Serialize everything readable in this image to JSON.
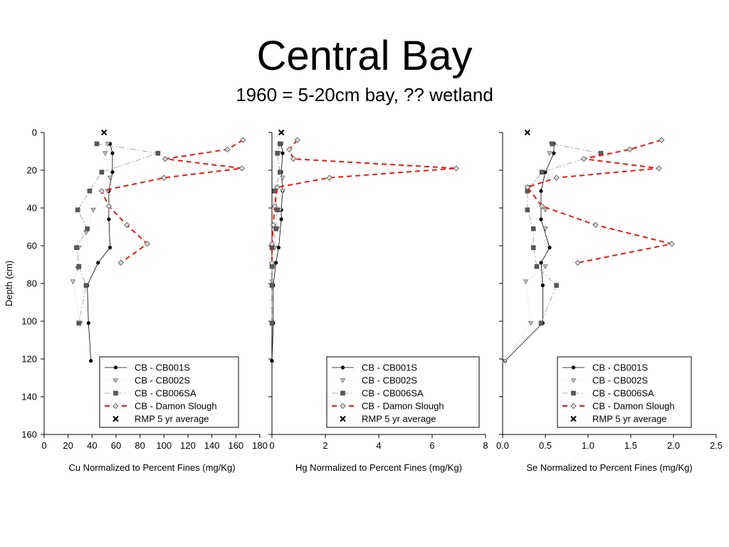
{
  "title": "Central Bay",
  "subtitle": "1960 = 5-20cm bay, ?? wetland",
  "colors": {
    "cb001s": "#000000",
    "cb002s": "#888888",
    "cb006sa": "#555555",
    "damon": "#e31a1c",
    "rmp": "#000000"
  },
  "legend": [
    "CB - CB001S",
    "CB - CB002S",
    "CB - CB006SA",
    "CB - Damon Slough",
    "RMP 5 yr average"
  ],
  "chart_data": [
    {
      "type": "scatter",
      "xlabel": "Cu Normalized to Percent Fines (mg/Kg)",
      "ylabel": "Depth (cm)",
      "xlim": [
        0,
        180
      ],
      "ylim": [
        160,
        0
      ],
      "xticks": [
        "0",
        "20",
        "40",
        "60",
        "80",
        "100",
        "120",
        "140",
        "160",
        "180"
      ],
      "yticks": [
        "0",
        "20",
        "40",
        "60",
        "80",
        "100",
        "120",
        "140",
        "160"
      ],
      "series": [
        {
          "name": "CB - CB001S",
          "x": [
            55,
            57,
            57,
            54,
            54,
            55,
            45,
            36,
            37,
            39
          ],
          "y": [
            6,
            11,
            21,
            31,
            46,
            61,
            69,
            81,
            101,
            121
          ]
        },
        {
          "name": "CB - CB002S",
          "x": [
            53,
            51,
            55,
            53,
            41,
            35,
            29,
            28,
            24,
            30
          ],
          "y": [
            6,
            11,
            24,
            31,
            41,
            53,
            61,
            72,
            79,
            101
          ]
        },
        {
          "name": "CB - CB006SA",
          "x": [
            44,
            95,
            48,
            38,
            28,
            36,
            27,
            29,
            35,
            29
          ],
          "y": [
            6,
            11,
            21,
            31,
            41,
            51,
            61,
            71,
            81,
            101
          ]
        },
        {
          "name": "CB - Damon Slough",
          "x": [
            166,
            153,
            101,
            165,
            100,
            48,
            54,
            69,
            86,
            64
          ],
          "y": [
            4,
            9,
            14,
            19,
            24,
            31,
            39,
            49,
            59,
            69
          ]
        },
        {
          "name": "RMP 5 yr average",
          "x": [
            50
          ],
          "y": [
            0
          ]
        }
      ]
    },
    {
      "type": "scatter",
      "xlabel": "Hg Normalized to Percent Fines (mg/Kg)",
      "ylabel": "",
      "xlim": [
        0,
        8
      ],
      "ylim": [
        160,
        0
      ],
      "xticks": [
        "0",
        "2",
        "4",
        "6",
        "8"
      ],
      "yticks": [],
      "series": [
        {
          "name": "CB - CB001S",
          "x": [
            0.35,
            0.4,
            0.35,
            0.4,
            0.35,
            0.35,
            0.25,
            0.15,
            0.05,
            0.05,
            0.0
          ],
          "y": [
            6,
            11,
            21,
            31,
            41,
            46,
            61,
            69,
            81,
            101,
            121
          ]
        },
        {
          "name": "CB - CB002S",
          "x": [
            0.35,
            0.25,
            0.4,
            0.4,
            0.3,
            0.2,
            0.1,
            0.05,
            0.0,
            0.0,
            0.0
          ],
          "y": [
            6,
            11,
            24,
            31,
            41,
            51,
            61,
            71,
            79,
            101,
            101
          ]
        },
        {
          "name": "CB - CB006SA",
          "x": [
            0.3,
            0.2,
            0.3,
            0.1,
            0.2,
            0.15,
            0.0,
            0.0,
            0.0,
            0.0
          ],
          "y": [
            6,
            11,
            21,
            31,
            41,
            51,
            61,
            71,
            81,
            101
          ]
        },
        {
          "name": "CB - Damon Slough",
          "x": [
            0.95,
            0.65,
            0.8,
            6.9,
            2.15,
            0.2,
            0.1,
            0.05,
            0.0,
            0.0
          ],
          "y": [
            4,
            9,
            14,
            19,
            24,
            29,
            39,
            49,
            59,
            69
          ]
        },
        {
          "name": "RMP 5 yr average",
          "x": [
            0.35
          ],
          "y": [
            0
          ]
        }
      ]
    },
    {
      "type": "scatter",
      "xlabel": "Se Normalized to Percent Fines (mg/Kg)",
      "ylabel": "",
      "xlim": [
        0,
        2.5
      ],
      "ylim": [
        160,
        0
      ],
      "xticks": [
        "0.0",
        "0.5",
        "1.0",
        "1.5",
        "2.0",
        "2.5"
      ],
      "yticks": [],
      "series": [
        {
          "name": "CB - CB001S",
          "x": [
            0.6,
            0.6,
            0.5,
            0.45,
            0.45,
            0.55,
            0.45,
            0.47,
            0.47,
            0.03
          ],
          "y": [
            6,
            11,
            21,
            31,
            46,
            61,
            69,
            81,
            101,
            121
          ]
        },
        {
          "name": "CB - CB002S",
          "x": [
            0.57,
            0.55,
            0.47,
            0.3,
            0.5,
            0.5,
            0.5,
            0.27,
            0.33,
            0.03
          ],
          "y": [
            6,
            11,
            21,
            29,
            41,
            51,
            71,
            79,
            101,
            121
          ]
        },
        {
          "name": "CB - CB006SA",
          "x": [
            0.58,
            1.15,
            0.46,
            0.29,
            0.29,
            0.36,
            0.36,
            0.4,
            0.63,
            0.45
          ],
          "y": [
            6,
            11,
            21,
            31,
            41,
            51,
            61,
            71,
            81,
            101
          ]
        },
        {
          "name": "CB - Damon Slough",
          "x": [
            1.86,
            1.49,
            0.95,
            1.83,
            0.63,
            0.29,
            0.46,
            1.09,
            1.98,
            0.88
          ],
          "y": [
            4,
            9,
            14,
            19,
            24,
            29,
            39,
            49,
            59,
            69
          ]
        },
        {
          "name": "RMP 5 yr average",
          "x": [
            0.29
          ],
          "y": [
            0
          ]
        }
      ]
    }
  ]
}
